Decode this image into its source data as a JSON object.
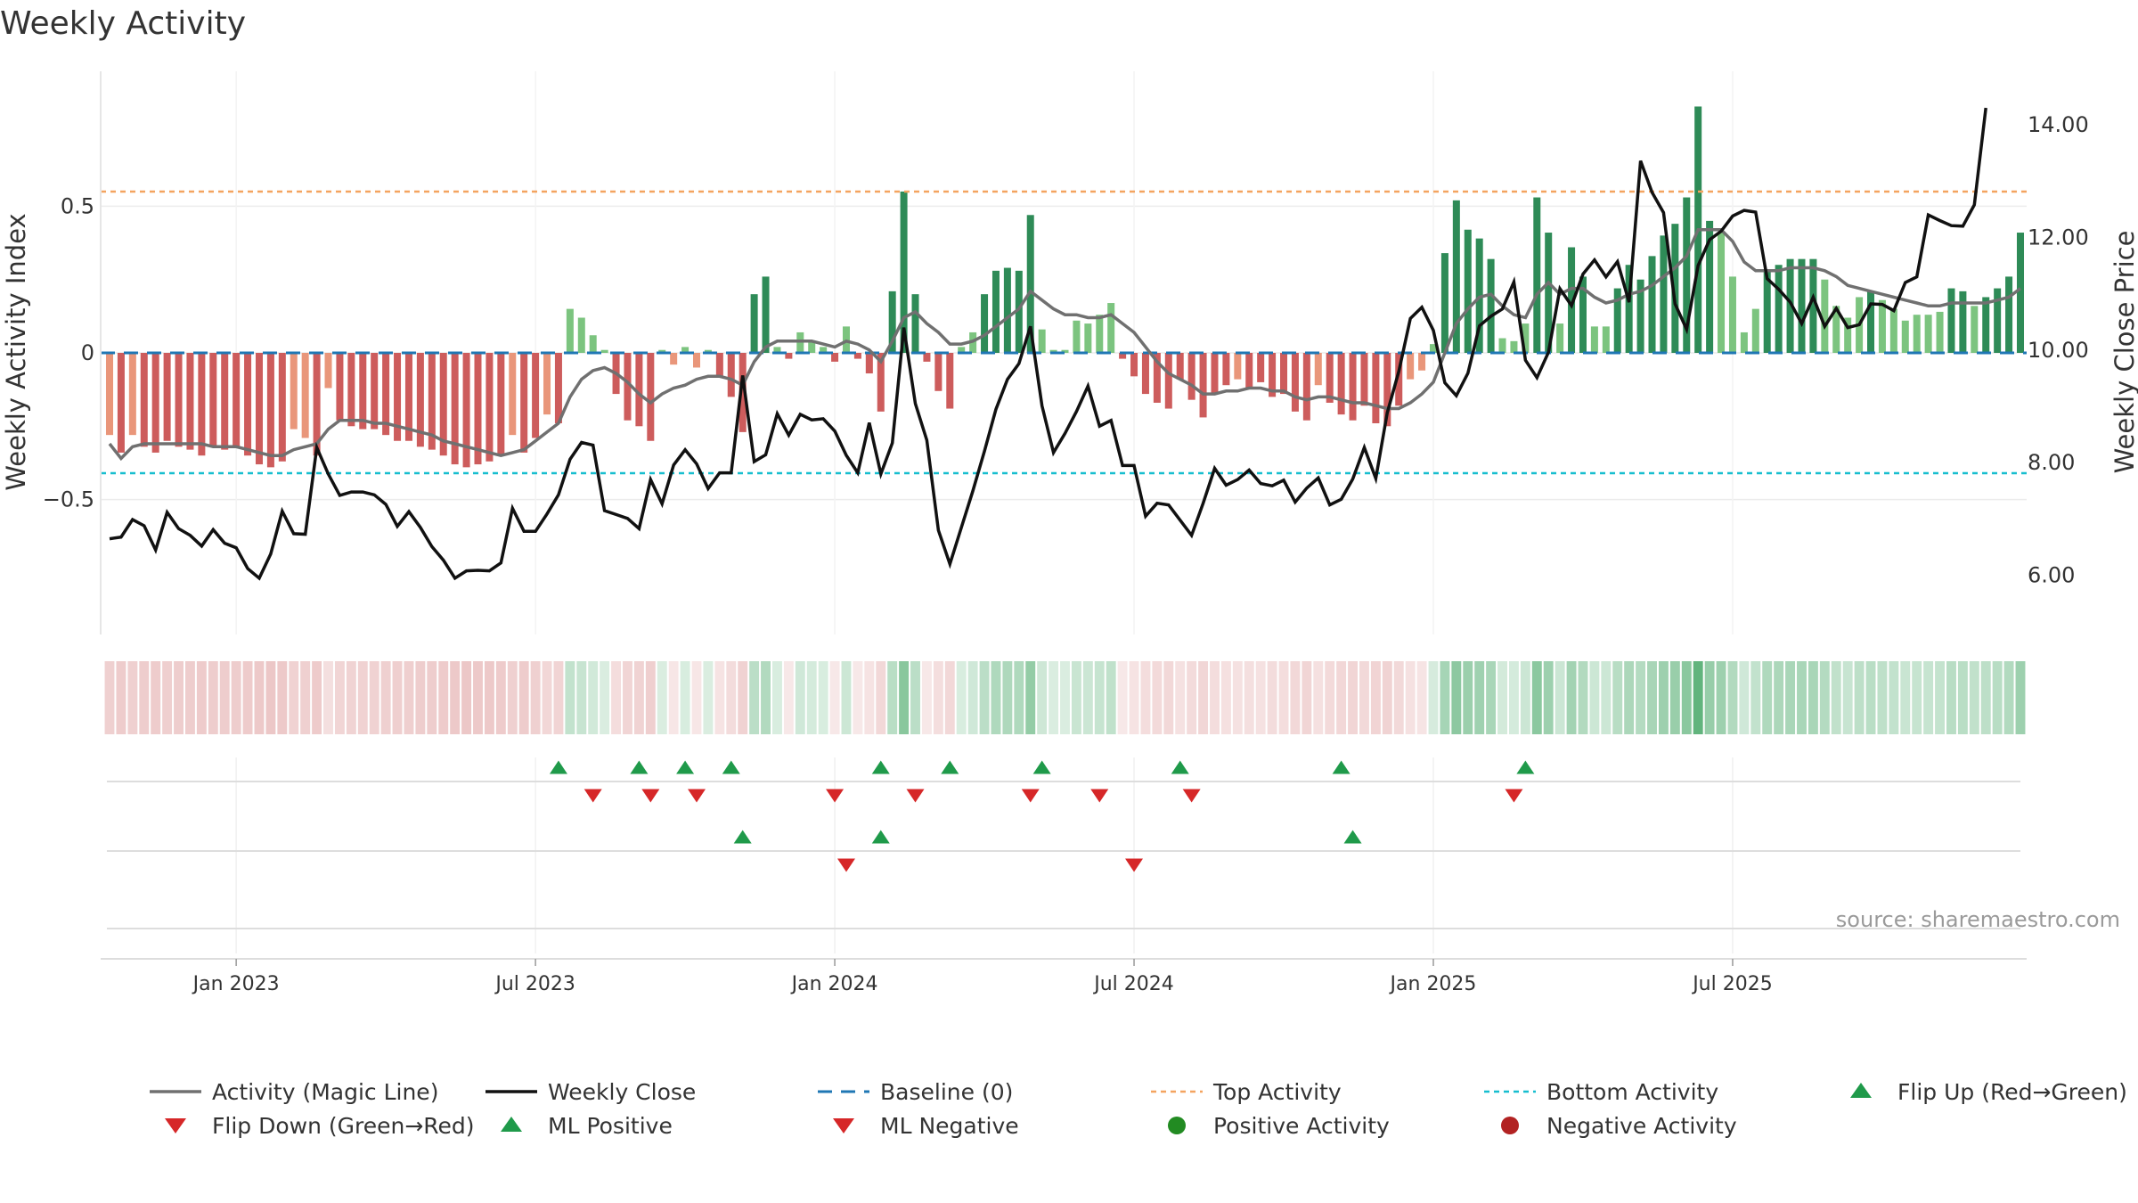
{
  "title": "Weekly Activity",
  "source": "source: sharemaestro.com",
  "colors": {
    "pos_dark": "#2e8b57",
    "pos_light": "#7cc47f",
    "neg_dark": "#cd5c5c",
    "neg_light": "#e9967a",
    "magic": "#707070",
    "close": "#111111",
    "baseline": "#1f77b4",
    "top": "#f4a460",
    "bottom": "#17becf",
    "flip_up": "#1f9a4a",
    "flip_down": "#d62728",
    "pos_activity": "#228b22",
    "neg_activity": "#b22222"
  },
  "chart_data": {
    "type": "bar+line",
    "xlabels": [
      "Jan 2023",
      "Jul 2023",
      "Jan 2024",
      "Jul 2024",
      "Jan 2025",
      "Jul 2025"
    ],
    "xlabel_index": [
      11,
      37,
      63,
      89,
      115,
      141
    ],
    "left_axis": {
      "label": "Weekly Activity Index",
      "ticks": [
        {
          "v": 0.5,
          "t": "0.5"
        },
        {
          "v": 0,
          "t": "0"
        },
        {
          "v": -0.5,
          "t": "−0.5"
        }
      ],
      "range": [
        -0.96,
        0.96
      ]
    },
    "right_axis": {
      "label": "Weekly Close Price",
      "ticks": [
        {
          "v": 14,
          "t": "14.00"
        },
        {
          "v": 12,
          "t": "12.00"
        },
        {
          "v": 10,
          "t": "10.00"
        },
        {
          "v": 8,
          "t": "8.00"
        },
        {
          "v": 6,
          "t": "6.00"
        }
      ],
      "range": [
        4.95,
        14.95
      ]
    },
    "top_activity": 0.55,
    "bottom_activity": -0.41,
    "activity": [
      -0.28,
      -0.34,
      -0.28,
      -0.32,
      -0.34,
      -0.3,
      -0.32,
      -0.33,
      -0.35,
      -0.32,
      -0.33,
      -0.32,
      -0.35,
      -0.38,
      -0.39,
      -0.37,
      -0.26,
      -0.29,
      -0.35,
      -0.12,
      -0.23,
      -0.25,
      -0.26,
      -0.26,
      -0.28,
      -0.3,
      -0.3,
      -0.32,
      -0.33,
      -0.35,
      -0.38,
      -0.39,
      -0.38,
      -0.37,
      -0.35,
      -0.28,
      -0.34,
      -0.29,
      -0.21,
      -0.24,
      0.15,
      0.12,
      0.06,
      0.01,
      -0.14,
      -0.23,
      -0.25,
      -0.3,
      0.01,
      -0.04,
      0.02,
      -0.05,
      0.01,
      -0.08,
      -0.15,
      -0.27,
      0.2,
      0.26,
      0.02,
      -0.02,
      0.07,
      0.04,
      0.02,
      -0.03,
      0.09,
      -0.02,
      -0.07,
      -0.2,
      0.21,
      0.55,
      0.2,
      -0.03,
      -0.13,
      -0.19,
      0.02,
      0.07,
      0.2,
      0.28,
      0.29,
      0.28,
      0.47,
      0.08,
      0.01,
      0.01,
      0.11,
      0.1,
      0.13,
      0.17,
      -0.02,
      -0.08,
      -0.14,
      -0.17,
      -0.19,
      -0.09,
      -0.16,
      -0.22,
      -0.14,
      -0.11,
      -0.09,
      -0.12,
      -0.1,
      -0.15,
      -0.14,
      -0.2,
      -0.23,
      -0.11,
      -0.17,
      -0.21,
      -0.23,
      -0.18,
      -0.24,
      -0.25,
      -0.18,
      -0.09,
      -0.06,
      0.03,
      0.34,
      0.52,
      0.42,
      0.39,
      0.32,
      0.05,
      0.04,
      0.1,
      0.53,
      0.41,
      0.1,
      0.36,
      0.26,
      0.09,
      0.09,
      0.22,
      0.3,
      0.25,
      0.33,
      0.4,
      0.44,
      0.53,
      0.84,
      0.45,
      0.41,
      0.26,
      0.07,
      0.15,
      0.28,
      0.3,
      0.32,
      0.32,
      0.32,
      0.25,
      0.16,
      0.12,
      0.19,
      0.21,
      0.18,
      0.15,
      0.11,
      0.13,
      0.13,
      0.14,
      0.22,
      0.21,
      0.16,
      0.19,
      0.22,
      0.26,
      0.41
    ],
    "magic_line": [
      -0.31,
      -0.36,
      -0.32,
      -0.31,
      -0.31,
      -0.31,
      -0.31,
      -0.31,
      -0.31,
      -0.32,
      -0.32,
      -0.32,
      -0.33,
      -0.34,
      -0.35,
      -0.35,
      -0.33,
      -0.32,
      -0.31,
      -0.26,
      -0.23,
      -0.23,
      -0.23,
      -0.24,
      -0.24,
      -0.25,
      -0.26,
      -0.27,
      -0.28,
      -0.3,
      -0.31,
      -0.32,
      -0.33,
      -0.34,
      -0.35,
      -0.34,
      -0.33,
      -0.3,
      -0.27,
      -0.24,
      -0.15,
      -0.09,
      -0.06,
      -0.05,
      -0.07,
      -0.1,
      -0.14,
      -0.17,
      -0.14,
      -0.12,
      -0.11,
      -0.09,
      -0.08,
      -0.08,
      -0.09,
      -0.11,
      -0.03,
      0.02,
      0.04,
      0.04,
      0.04,
      0.04,
      0.03,
      0.02,
      0.04,
      0.03,
      0.01,
      -0.03,
      0.04,
      0.12,
      0.14,
      0.1,
      0.07,
      0.03,
      0.03,
      0.04,
      0.06,
      0.09,
      0.12,
      0.15,
      0.21,
      0.18,
      0.15,
      0.13,
      0.13,
      0.12,
      0.12,
      0.13,
      0.1,
      0.07,
      0.02,
      -0.03,
      -0.07,
      -0.09,
      -0.11,
      -0.14,
      -0.14,
      -0.13,
      -0.13,
      -0.12,
      -0.12,
      -0.13,
      -0.13,
      -0.15,
      -0.16,
      -0.15,
      -0.15,
      -0.16,
      -0.17,
      -0.17,
      -0.18,
      -0.19,
      -0.19,
      -0.17,
      -0.14,
      -0.1,
      0.0,
      0.1,
      0.15,
      0.19,
      0.2,
      0.16,
      0.13,
      0.12,
      0.2,
      0.24,
      0.2,
      0.22,
      0.22,
      0.19,
      0.17,
      0.18,
      0.2,
      0.21,
      0.23,
      0.26,
      0.29,
      0.33,
      0.42,
      0.42,
      0.42,
      0.38,
      0.31,
      0.28,
      0.28,
      0.28,
      0.29,
      0.29,
      0.29,
      0.28,
      0.26,
      0.23,
      0.22,
      0.21,
      0.2,
      0.19,
      0.18,
      0.17,
      0.16,
      0.16,
      0.17,
      0.17,
      0.17,
      0.17,
      0.18,
      0.19,
      0.22
    ],
    "weekly_close": [
      6.65,
      6.68,
      6.99,
      6.88,
      6.45,
      7.12,
      6.83,
      6.71,
      6.52,
      6.81,
      6.57,
      6.49,
      6.12,
      5.95,
      6.38,
      7.14,
      6.74,
      6.73,
      8.27,
      7.8,
      7.42,
      7.48,
      7.48,
      7.43,
      7.26,
      6.87,
      7.13,
      6.85,
      6.51,
      6.27,
      5.95,
      6.08,
      6.09,
      6.08,
      6.22,
      7.19,
      6.78,
      6.78,
      7.09,
      7.43,
      8.06,
      8.36,
      8.31,
      7.15,
      7.08,
      7.01,
      6.83,
      7.7,
      7.27,
      7.96,
      8.23,
      7.98,
      7.54,
      7.82,
      7.82,
      9.55,
      8.02,
      8.14,
      8.87,
      8.49,
      8.86,
      8.76,
      8.78,
      8.56,
      8.13,
      7.82,
      8.71,
      7.8,
      8.35,
      10.4,
      9.05,
      8.4,
      6.8,
      6.2,
      6.85,
      7.5,
      8.2,
      8.95,
      9.48,
      9.76,
      10.42,
      9.01,
      8.18,
      8.52,
      8.91,
      9.36,
      8.65,
      8.75,
      7.95,
      7.95,
      7.05,
      7.28,
      7.25,
      6.98,
      6.71,
      7.28,
      7.9,
      7.6,
      7.7,
      7.87,
      7.63,
      7.59,
      7.69,
      7.3,
      7.55,
      7.73,
      7.25,
      7.35,
      7.71,
      8.27,
      7.72,
      8.89,
      9.62,
      10.56,
      10.76,
      10.35,
      9.42,
      9.19,
      9.59,
      10.43,
      10.6,
      10.73,
      11.21,
      9.82,
      9.51,
      9.96,
      11.09,
      10.79,
      11.35,
      11.6,
      11.3,
      11.57,
      10.85,
      13.36,
      12.8,
      12.44,
      10.82,
      10.37,
      11.5,
      11.96,
      12.11,
      12.38,
      12.48,
      12.45,
      11.27,
      11.08,
      10.85,
      10.47,
      10.94,
      10.42,
      10.74,
      10.4,
      10.45,
      10.82,
      10.81,
      10.7,
      11.2,
      11.3,
      12.4,
      12.3,
      12.21,
      12.2,
      12.58,
      14.3
    ],
    "flip_up_row1": [
      39,
      46,
      50,
      54,
      67,
      73,
      81,
      93,
      107,
      123
    ],
    "flip_down_row1": [
      42,
      47,
      51,
      63,
      70,
      80,
      86,
      94,
      122
    ],
    "ml_positive_row2": [
      55,
      67,
      108
    ],
    "ml_negative_row2": [
      64,
      89
    ],
    "legend": [
      {
        "label": "Activity (Magic Line)",
        "key": "line-gray"
      },
      {
        "label": "Weekly Close",
        "key": "line-black"
      },
      {
        "label": "Baseline (0)",
        "key": "dash-blue"
      },
      {
        "label": "Top Activity",
        "key": "dot-orange"
      },
      {
        "label": "Bottom Activity",
        "key": "dot-cyan"
      },
      {
        "label": "Flip Up (Red→Green)",
        "key": "tri-up"
      },
      {
        "label": "Flip Down (Green→Red)",
        "key": "tri-down"
      },
      {
        "label": "ML Positive",
        "key": "tri-up"
      },
      {
        "label": "ML Negative",
        "key": "tri-down"
      },
      {
        "label": "Positive Activity",
        "key": "dot-green"
      },
      {
        "label": "Negative Activity",
        "key": "dot-red"
      }
    ]
  }
}
